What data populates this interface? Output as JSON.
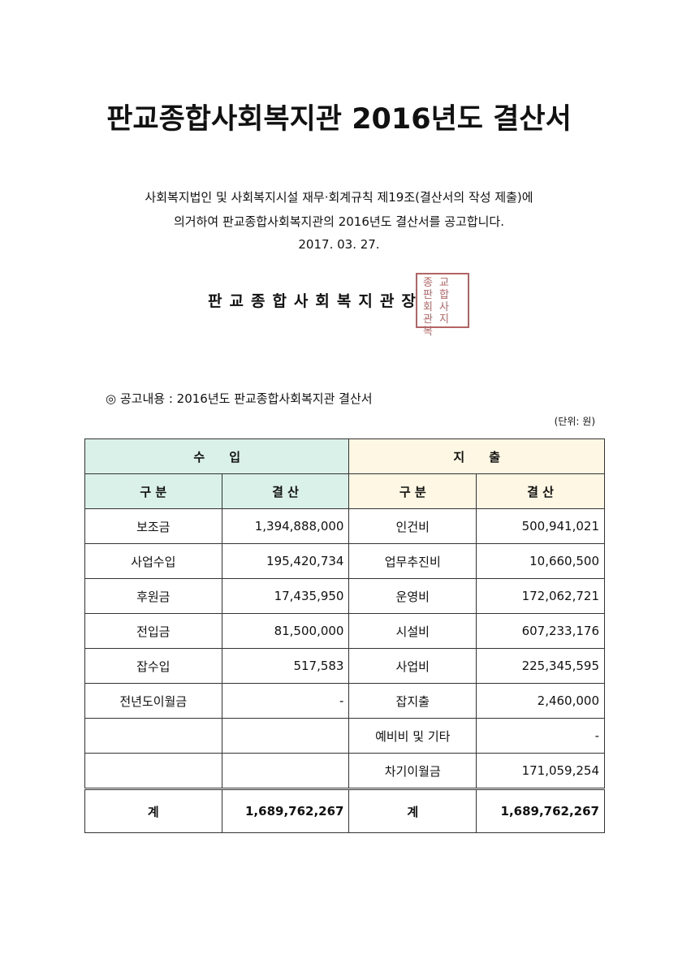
{
  "title": "판교종합사회복지관 2016년도 결산서",
  "intro": {
    "line1": "사회복지법인 및 사회복지시설 재무·회계규칙 제19조(결산서의 작성 제출)에",
    "line2": "의거하여 판교종합사회복지관의 2016년도 결산서를 공고합니다.",
    "date": "2017. 03. 27."
  },
  "signature": "판교종합사회복지관장",
  "seal": {
    "text": [
      "종",
      "교",
      "판",
      "합",
      "회",
      "사",
      "관",
      "지",
      "복"
    ],
    "color": "#a84a4a"
  },
  "notice": "◎ 공고내용 : 2016년도 판교종합사회복지관 결산서",
  "unit": "(단위: 원)",
  "table": {
    "income_header": "수　　입",
    "expense_header": "지　　출",
    "col_category": "구 분",
    "col_amount": "결 산",
    "rows": [
      {
        "in_cat": "보조금",
        "in_amt": "1,394,888,000",
        "out_cat": "인건비",
        "out_amt": "500,941,021"
      },
      {
        "in_cat": "사업수입",
        "in_amt": "195,420,734",
        "out_cat": "업무추진비",
        "out_amt": "10,660,500"
      },
      {
        "in_cat": "후원금",
        "in_amt": "17,435,950",
        "out_cat": "운영비",
        "out_amt": "172,062,721"
      },
      {
        "in_cat": "전입금",
        "in_amt": "81,500,000",
        "out_cat": "시설비",
        "out_amt": "607,233,176"
      },
      {
        "in_cat": "잡수입",
        "in_amt": "517,583",
        "out_cat": "사업비",
        "out_amt": "225,345,595"
      },
      {
        "in_cat": "전년도이월금",
        "in_amt": "-",
        "out_cat": "잡지출",
        "out_amt": "2,460,000"
      },
      {
        "in_cat": "",
        "in_amt": "",
        "out_cat": "예비비 및 기타",
        "out_amt": "-"
      },
      {
        "in_cat": "",
        "in_amt": "",
        "out_cat": "차기이월금",
        "out_amt": "171,059,254"
      }
    ],
    "total": {
      "label": "계",
      "in_amt": "1,689,762,267",
      "out_amt": "1,689,762,267"
    },
    "colors": {
      "income_bg": "#daf1ea",
      "expense_bg": "#fdf7e3"
    }
  }
}
